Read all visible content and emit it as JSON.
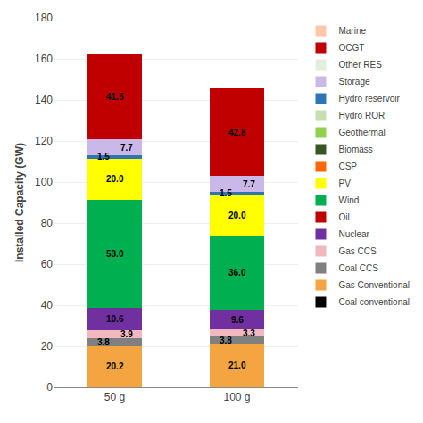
{
  "chart_data": {
    "type": "bar",
    "stacked": true,
    "categories": [
      "50 g",
      "100 g"
    ],
    "ylabel": "Installed Capacity (GW)",
    "ylim": [
      0,
      180
    ],
    "yticks": [
      0,
      20,
      40,
      60,
      80,
      100,
      120,
      140,
      160,
      180
    ],
    "grid": true,
    "legend": "right",
    "data_labels": true,
    "series": [
      {
        "name": "Coal conventional",
        "color": "#000000",
        "values": [
          0.0,
          0.0
        ]
      },
      {
        "name": "Gas Conventional",
        "color": "#f4a440",
        "values": [
          20.2,
          21.0
        ],
        "value_labels": [
          "20.2",
          "21.0"
        ]
      },
      {
        "name": "Coal CCS",
        "color": "#808080",
        "values": [
          3.8,
          3.8
        ],
        "value_labels": [
          "3.8",
          "3.8"
        ]
      },
      {
        "name": "Gas CCS",
        "color": "#f2b8c0",
        "values": [
          3.9,
          3.3
        ],
        "value_labels": [
          "3.9",
          "3.3"
        ]
      },
      {
        "name": "Nuclear",
        "color": "#7030a0",
        "values": [
          10.6,
          9.6
        ],
        "value_labels": [
          "10.6",
          "9.6"
        ]
      },
      {
        "name": "Oil",
        "color": "#c00000",
        "values": [
          0.0,
          0.0
        ]
      },
      {
        "name": "Wind",
        "color": "#00b050",
        "values": [
          53.0,
          36.0
        ],
        "value_labels": [
          "53.0",
          "36.0"
        ]
      },
      {
        "name": "PV",
        "color": "#ffff00",
        "values": [
          20.0,
          20.0
        ],
        "value_labels": [
          "20.0",
          "20.0"
        ]
      },
      {
        "name": "CSP",
        "color": "#ff6600",
        "values": [
          0.0,
          0.0
        ]
      },
      {
        "name": "Biomass",
        "color": "#375623",
        "values": [
          0.0,
          0.0
        ]
      },
      {
        "name": "Geothermal",
        "color": "#92d050",
        "values": [
          0.0,
          0.0
        ]
      },
      {
        "name": "Hydro ROR",
        "color": "#c6e0b4",
        "values": [
          0.0,
          0.0
        ]
      },
      {
        "name": "Hydro reservoir",
        "color": "#2e75b6",
        "values": [
          1.5,
          1.5
        ],
        "value_labels": [
          "1.5",
          "1.5"
        ]
      },
      {
        "name": "Storage",
        "color": "#c9b8e8",
        "values": [
          7.7,
          7.7
        ],
        "value_labels": [
          "7.7",
          "7.7"
        ]
      },
      {
        "name": "Other RES",
        "color": "#e2efda",
        "values": [
          0.0,
          0.0
        ]
      },
      {
        "name": "OCGT",
        "color": "#c00000",
        "values": [
          41.5,
          42.8
        ],
        "value_labels": [
          "41.5",
          "42.8"
        ]
      },
      {
        "name": "Marine",
        "color": "#ffc7aa",
        "values": [
          0.0,
          0.0
        ]
      }
    ]
  }
}
